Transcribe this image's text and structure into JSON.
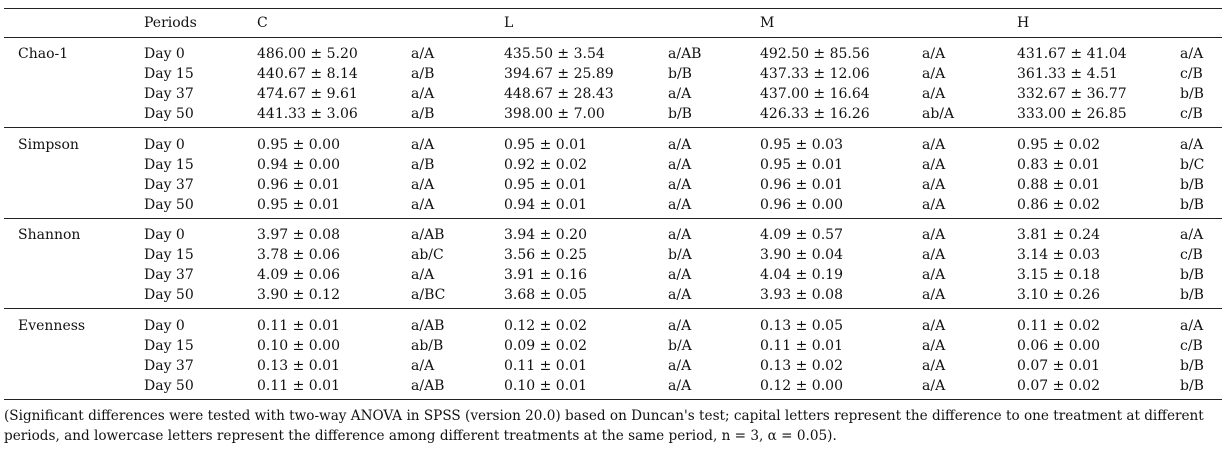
{
  "table": {
    "header": [
      "Periods",
      "C",
      "L",
      "M",
      "H"
    ],
    "groups": [
      {
        "name": "Chao-1",
        "rows": [
          [
            "Day 0",
            "486.00 ± 5.20",
            "a/A",
            "435.50 ± 3.54",
            "a/AB",
            "492.50 ± 85.56",
            "a/A",
            "431.67 ± 41.04",
            "a/A"
          ],
          [
            "Day 15",
            "440.67 ± 8.14",
            "a/B",
            "394.67 ± 25.89",
            "b/B",
            "437.33 ± 12.06",
            "a/A",
            "361.33 ± 4.51",
            "c/B"
          ],
          [
            "Day 37",
            "474.67 ± 9.61",
            "a/A",
            "448.67 ± 28.43",
            "a/A",
            "437.00 ± 16.64",
            "a/A",
            "332.67 ± 36.77",
            "b/B"
          ],
          [
            "Day 50",
            "441.33 ± 3.06",
            "a/B",
            "398.00 ± 7.00",
            "b/B",
            "426.33 ± 16.26",
            "ab/A",
            "333.00 ± 26.85",
            "c/B"
          ]
        ]
      },
      {
        "name": "Simpson",
        "rows": [
          [
            "Day 0",
            "0.95 ± 0.00",
            "a/A",
            "0.95 ± 0.01",
            "a/A",
            "0.95 ± 0.03",
            "a/A",
            "0.95 ± 0.02",
            "a/A"
          ],
          [
            "Day 15",
            "0.94 ± 0.00",
            "a/B",
            "0.92 ± 0.02",
            "a/A",
            "0.95 ± 0.01",
            "a/A",
            "0.83 ± 0.01",
            "b/C"
          ],
          [
            "Day 37",
            "0.96 ± 0.01",
            "a/A",
            "0.95 ± 0.01",
            "a/A",
            "0.96 ± 0.01",
            "a/A",
            "0.88 ± 0.01",
            "b/B"
          ],
          [
            "Day 50",
            "0.95 ± 0.01",
            "a/A",
            "0.94 ± 0.01",
            "a/A",
            "0.96 ± 0.00",
            "a/A",
            "0.86 ± 0.02",
            "b/B"
          ]
        ]
      },
      {
        "name": "Shannon",
        "rows": [
          [
            "Day 0",
            "3.97 ± 0.08",
            "a/AB",
            "3.94 ± 0.20",
            "a/A",
            "4.09 ± 0.57",
            "a/A",
            "3.81 ± 0.24",
            "a/A"
          ],
          [
            "Day 15",
            "3.78 ± 0.06",
            "ab/C",
            "3.56 ± 0.25",
            "b/A",
            "3.90 ± 0.04",
            "a/A",
            "3.14 ± 0.03",
            "c/B"
          ],
          [
            "Day 37",
            "4.09 ± 0.06",
            "a/A",
            "3.91 ± 0.16",
            "a/A",
            "4.04 ± 0.19",
            "a/A",
            "3.15 ± 0.18",
            "b/B"
          ],
          [
            "Day 50",
            "3.90 ± 0.12",
            "a/BC",
            "3.68 ± 0.05",
            "a/A",
            "3.93 ± 0.08",
            "a/A",
            "3.10 ± 0.26",
            "b/B"
          ]
        ]
      },
      {
        "name": "Evenness",
        "rows": [
          [
            "Day 0",
            "0.11 ± 0.01",
            "a/AB",
            "0.12 ± 0.02",
            "a/A",
            "0.13 ± 0.05",
            "a/A",
            "0.11 ± 0.02",
            "a/A"
          ],
          [
            "Day 15",
            "0.10 ± 0.00",
            "ab/B",
            "0.09 ± 0.02",
            "b/A",
            "0.11 ± 0.01",
            "a/A",
            "0.06 ± 0.00",
            "c/B"
          ],
          [
            "Day 37",
            "0.13 ± 0.01",
            "a/A",
            "0.11 ± 0.01",
            "a/A",
            "0.13 ± 0.02",
            "a/A",
            "0.07 ± 0.01",
            "b/B"
          ],
          [
            "Day 50",
            "0.11 ± 0.01",
            "a/AB",
            "0.10 ± 0.01",
            "a/A",
            "0.12 ± 0.00",
            "a/A",
            "0.07 ± 0.02",
            "b/B"
          ]
        ]
      }
    ],
    "footnote": "(Significant differences were tested with two-way ANOVA in SPSS (version 20.0) based on Duncan's test; capital letters represent the difference to one treatment at different periods, and lowercase letters represent the difference among different treatments at the same period, n = 3, α = 0.05)."
  }
}
